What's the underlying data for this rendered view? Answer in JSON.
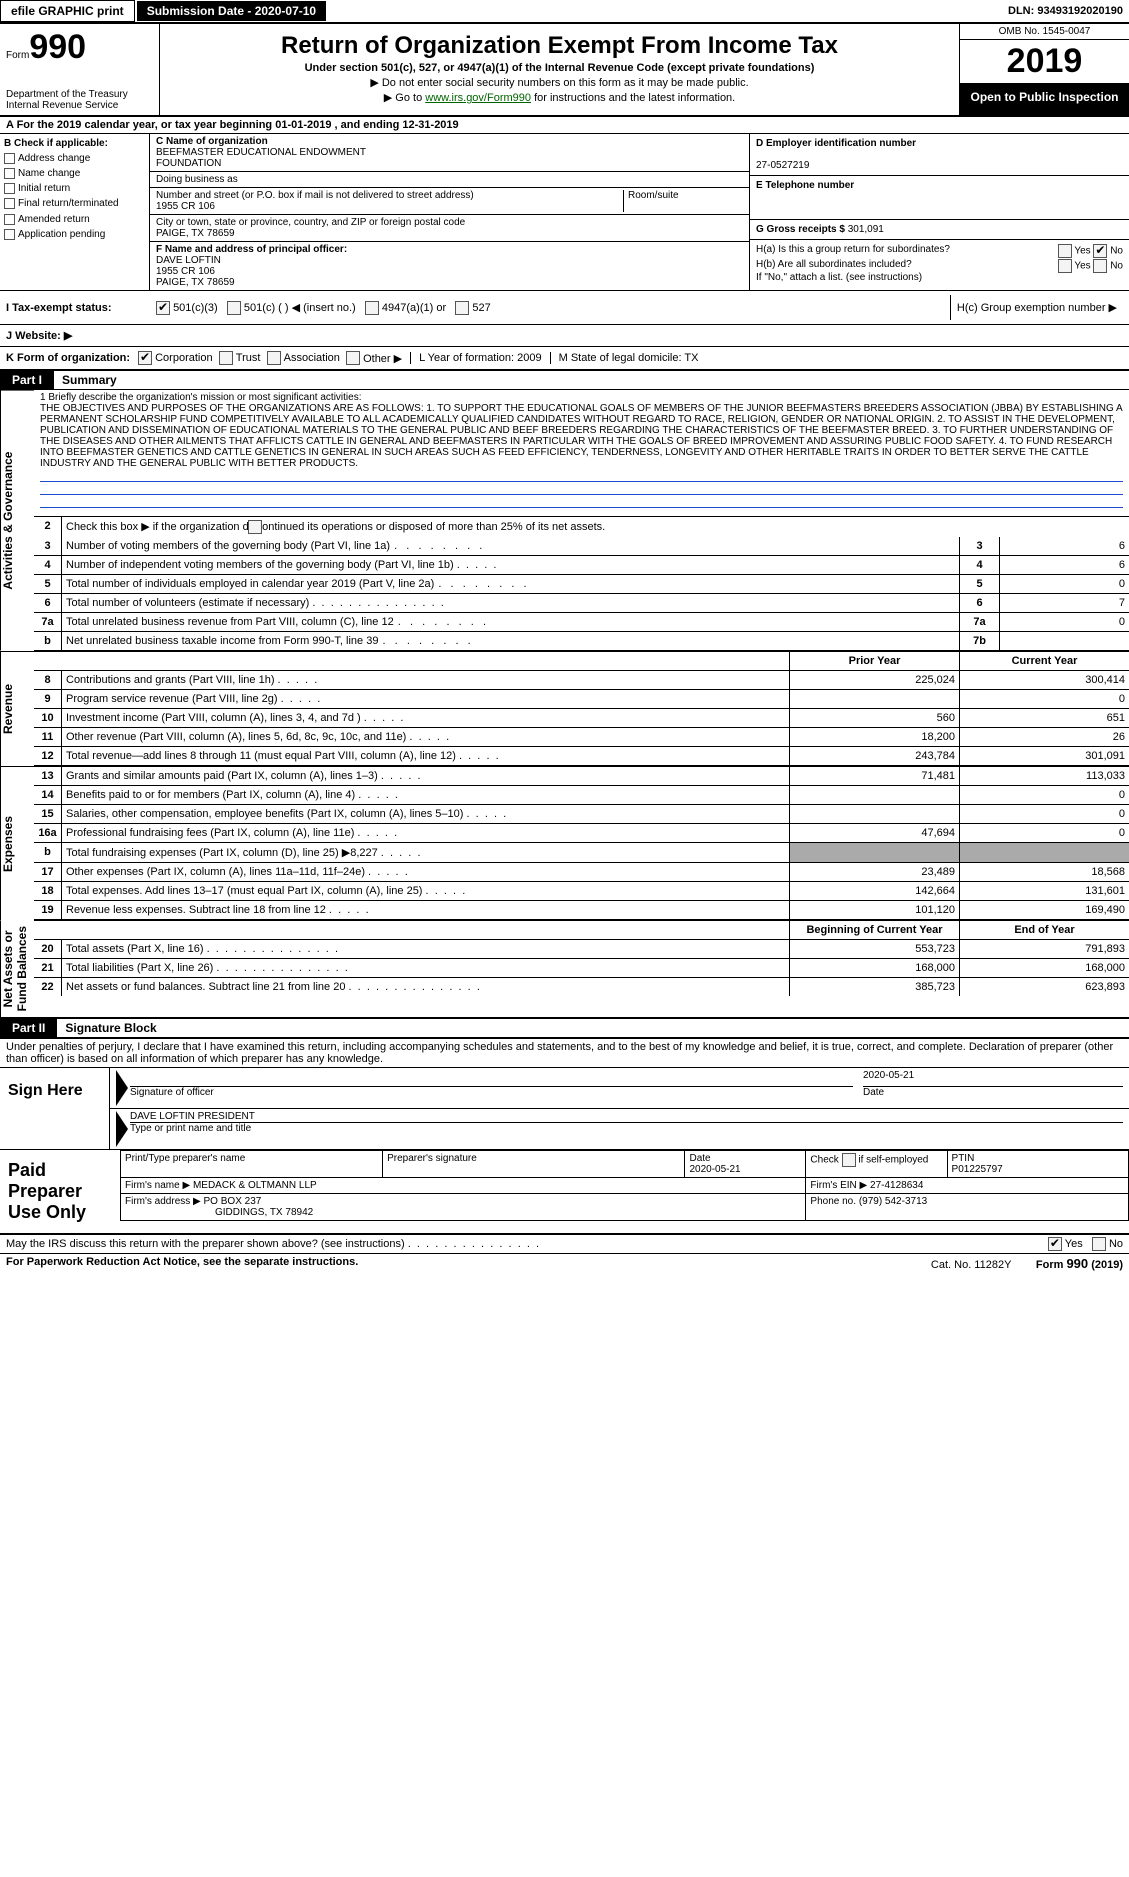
{
  "topbar": {
    "efile": "efile GRAPHIC print",
    "submission": "Submission Date - 2020-07-10",
    "dln": "DLN: 93493192020190"
  },
  "header": {
    "form_word": "Form",
    "form_num": "990",
    "dept1": "Department of the Treasury",
    "dept2": "Internal Revenue Service",
    "title": "Return of Organization Exempt From Income Tax",
    "subtitle": "Under section 501(c), 527, or 4947(a)(1) of the Internal Revenue Code (except private foundations)",
    "note1": "▶ Do not enter social security numbers on this form as it may be made public.",
    "note2_pre": "▶ Go to ",
    "note2_link": "www.irs.gov/Form990",
    "note2_post": " for instructions and the latest information.",
    "omb": "OMB No. 1545-0047",
    "year": "2019",
    "open_pub": "Open to Public Inspection"
  },
  "rowA": {
    "text_pre": "A   For the 2019 calendar year, or tax year beginning ",
    "begin": "01-01-2019",
    "mid": "  , and ending ",
    "end": "12-31-2019"
  },
  "blockB": {
    "hdr": "B  Check if applicable:",
    "items": [
      "Address change",
      "Name change",
      "Initial return",
      "Final return/terminated",
      "Amended return",
      "Application pending"
    ]
  },
  "blockC": {
    "name_lbl": "C Name of organization",
    "name1": "BEEFMASTER EDUCATIONAL ENDOWMENT",
    "name2": "FOUNDATION",
    "dba_lbl": "Doing business as",
    "addr_lbl": "Number and street (or P.O. box if mail is not delivered to street address)",
    "room_lbl": "Room/suite",
    "addr": "1955 CR 106",
    "city_lbl": "City or town, state or province, country, and ZIP or foreign postal code",
    "city": "PAIGE, TX  78659",
    "f_lbl": "F  Name and address of principal officer:",
    "f_name": "DAVE LOFTIN",
    "f_addr1": "1955 CR 106",
    "f_addr2": "PAIGE, TX  78659"
  },
  "blockD": {
    "ein_lbl": "D Employer identification number",
    "ein": "27-0527219",
    "tel_lbl": "E Telephone number",
    "gross_lbl": "G Gross receipts $ ",
    "gross": "301,091"
  },
  "blockH": {
    "ha": "H(a)   Is this a group return for subordinates?",
    "hb": "H(b)   Are all subordinates included?",
    "hb_note": "If \"No,\" attach a list. (see instructions)",
    "hc": "H(c)   Group exemption number ▶",
    "yes": "Yes",
    "no": "No"
  },
  "taxRow": {
    "lbl": "I     Tax-exempt status:",
    "c1": "501(c)(3)",
    "c2": "501(c) (   ) ◀ (insert no.)",
    "c3": "4947(a)(1) or",
    "c4": "527"
  },
  "webRow": {
    "lbl": "J    Website: ▶"
  },
  "kRow": {
    "lbl": "K Form of organization:",
    "opts": [
      "Corporation",
      "Trust",
      "Association",
      "Other ▶"
    ],
    "l": "L Year of formation: 2009",
    "m": "M State of legal domicile: TX"
  },
  "part1": {
    "tag": "Part I",
    "title": "Summary"
  },
  "mission": {
    "lead": "1    Briefly describe the organization's mission or most significant activities:",
    "body": "THE OBJECTIVES AND PURPOSES OF THE ORGANIZATIONS ARE AS FOLLOWS: 1. TO SUPPORT THE EDUCATIONAL GOALS OF MEMBERS OF THE JUNIOR BEEFMASTERS BREEDERS ASSOCIATION (JBBA) BY ESTABLISHING A PERMANENT SCHOLARSHIP FUND COMPETITIVELY AVAILABLE TO ALL ACADEMICALLY QUALIFIED CANDIDATES WITHOUT REGARD TO RACE, RELIGION, GENDER OR NATIONAL ORIGIN. 2. TO ASSIST IN THE DEVELOPMENT, PUBLICATION AND DISSEMINATION OF EDUCATIONAL MATERIALS TO THE GENERAL PUBLIC AND BEEF BREEDERS REGARDING THE CHARACTERISTICS OF THE BEEFMASTER BREED. 3. TO FURTHER UNDERSTANDING OF THE DISEASES AND OTHER AILMENTS THAT AFFLICTS CATTLE IN GENERAL AND BEEFMASTERS IN PARTICULAR WITH THE GOALS OF BREED IMPROVEMENT AND ASSURING PUBLIC FOOD SAFETY. 4. TO FUND RESEARCH INTO BEEFMASTER GENETICS AND CATTLE GENETICS IN GENERAL IN SUCH AREAS SUCH AS FEED EFFICIENCY, TENDERNESS, LONGEVITY AND OTHER HERITABLE TRAITS IN ORDER TO BETTER SERVE THE CATTLE INDUSTRY AND THE GENERAL PUBLIC WITH BETTER PRODUCTS."
  },
  "govLines": {
    "l2": "Check this box ▶        if the organization discontinued its operations or disposed of more than 25% of its net assets.",
    "l3": {
      "t": "Number of voting members of the governing body (Part VI, line 1a)",
      "n": "3",
      "v": "6"
    },
    "l4": {
      "t": "Number of independent voting members of the governing body (Part VI, line 1b)",
      "n": "4",
      "v": "6"
    },
    "l5": {
      "t": "Total number of individuals employed in calendar year 2019 (Part V, line 2a)",
      "n": "5",
      "v": "0"
    },
    "l6": {
      "t": "Total number of volunteers (estimate if necessary)",
      "n": "6",
      "v": "7"
    },
    "l7a": {
      "t": "Total unrelated business revenue from Part VIII, column (C), line 12",
      "n": "7a",
      "v": "0"
    },
    "l7b": {
      "t": "Net unrelated business taxable income from Form 990-T, line 39",
      "n": "7b",
      "v": ""
    }
  },
  "colHdrs": {
    "prior": "Prior Year",
    "curr": "Current Year",
    "boy": "Beginning of Current Year",
    "eoy": "End of Year"
  },
  "revenue": [
    {
      "n": "8",
      "t": "Contributions and grants (Part VIII, line 1h)",
      "p": "225,024",
      "c": "300,414"
    },
    {
      "n": "9",
      "t": "Program service revenue (Part VIII, line 2g)",
      "p": "",
      "c": "0"
    },
    {
      "n": "10",
      "t": "Investment income (Part VIII, column (A), lines 3, 4, and 7d )",
      "p": "560",
      "c": "651"
    },
    {
      "n": "11",
      "t": "Other revenue (Part VIII, column (A), lines 5, 6d, 8c, 9c, 10c, and 11e)",
      "p": "18,200",
      "c": "26"
    },
    {
      "n": "12",
      "t": "Total revenue—add lines 8 through 11 (must equal Part VIII, column (A), line 12)",
      "p": "243,784",
      "c": "301,091"
    }
  ],
  "expenses": [
    {
      "n": "13",
      "t": "Grants and similar amounts paid (Part IX, column (A), lines 1–3)",
      "p": "71,481",
      "c": "113,033"
    },
    {
      "n": "14",
      "t": "Benefits paid to or for members (Part IX, column (A), line 4)",
      "p": "",
      "c": "0"
    },
    {
      "n": "15",
      "t": "Salaries, other compensation, employee benefits (Part IX, column (A), lines 5–10)",
      "p": "",
      "c": "0"
    },
    {
      "n": "16a",
      "t": "Professional fundraising fees (Part IX, column (A), line 11e)",
      "p": "47,694",
      "c": "0"
    },
    {
      "n": "b",
      "t": "Total fundraising expenses (Part IX, column (D), line 25) ▶8,227",
      "grey": true
    },
    {
      "n": "17",
      "t": "Other expenses (Part IX, column (A), lines 11a–11d, 11f–24e)",
      "p": "23,489",
      "c": "18,568"
    },
    {
      "n": "18",
      "t": "Total expenses. Add lines 13–17 (must equal Part IX, column (A), line 25)",
      "p": "142,664",
      "c": "131,601"
    },
    {
      "n": "19",
      "t": "Revenue less expenses. Subtract line 18 from line 12",
      "p": "101,120",
      "c": "169,490"
    }
  ],
  "netassets": [
    {
      "n": "20",
      "t": "Total assets (Part X, line 16)",
      "p": "553,723",
      "c": "791,893"
    },
    {
      "n": "21",
      "t": "Total liabilities (Part X, line 26)",
      "p": "168,000",
      "c": "168,000"
    },
    {
      "n": "22",
      "t": "Net assets or fund balances. Subtract line 21 from line 20",
      "p": "385,723",
      "c": "623,893"
    }
  ],
  "vtabs": {
    "ag": "Activities & Governance",
    "rev": "Revenue",
    "exp": "Expenses",
    "na": "Net Assets or\nFund Balances"
  },
  "part2": {
    "tag": "Part II",
    "title": "Signature Block"
  },
  "sig": {
    "perjury": "Under penalties of perjury, I declare that I have examined this return, including accompanying schedules and statements, and to the best of my knowledge and belief, it is true, correct, and complete. Declaration of preparer (other than officer) is based on all information of which preparer has any knowledge.",
    "here": "Sign Here",
    "sig_officer": "Signature of officer",
    "date_lbl": "Date",
    "sig_date": "2020-05-21",
    "name": "DAVE LOFTIN PRESIDENT",
    "name_lbl": "Type or print name and title"
  },
  "prep": {
    "left": "Paid Preparer Use Only",
    "p1": "Print/Type preparer's name",
    "p2": "Preparer's signature",
    "p3_lbl": "Date",
    "p3": "2020-05-21",
    "p4_lbl": "Check",
    "p4_txt": "if self-employed",
    "p5_lbl": "PTIN",
    "p5": "P01225797",
    "firm_lbl": "Firm's name    ▶",
    "firm": "MEDACK & OLTMANN LLP",
    "ein_lbl": "Firm's EIN ▶",
    "ein": "27-4128634",
    "addr_lbl": "Firm's address ▶",
    "addr1": "PO BOX 237",
    "addr2": "GIDDINGS, TX  78942",
    "phone_lbl": "Phone no.",
    "phone": "(979) 542-3713"
  },
  "footer": {
    "discuss": "May the IRS discuss this return with the preparer shown above? (see instructions)",
    "yes": "Yes",
    "no": "No",
    "paperwork": "For Paperwork Reduction Act Notice, see the separate instructions.",
    "cat": "Cat. No. 11282Y",
    "form": "Form 990 (2019)"
  }
}
